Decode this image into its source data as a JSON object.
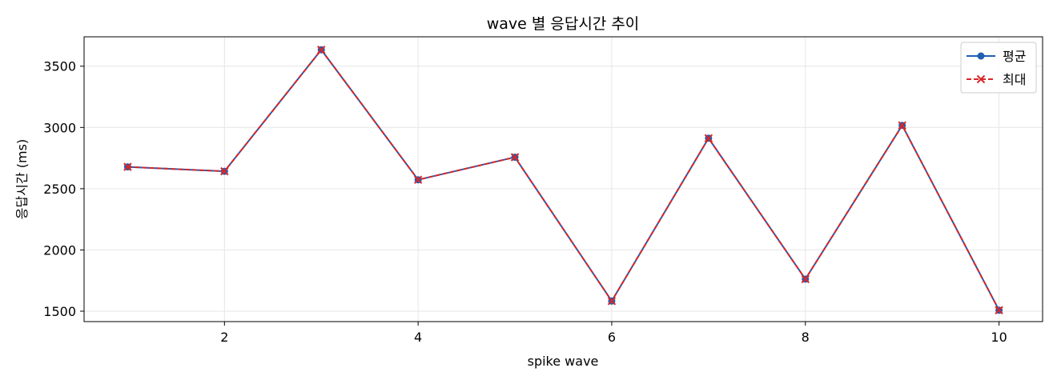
{
  "chart_data": {
    "type": "line",
    "title": "wave 별 응답시간 추이",
    "xlabel": "spike wave",
    "ylabel": "응답시간 (ms)",
    "x": [
      1,
      2,
      3,
      4,
      5,
      6,
      7,
      8,
      9,
      10
    ],
    "xlim": [
      0.55,
      10.45
    ],
    "ylim": [
      1415,
      3740
    ],
    "xticks": [
      2,
      4,
      6,
      8,
      10
    ],
    "yticks": [
      1500,
      2000,
      2500,
      3000,
      3500
    ],
    "grid": true,
    "legend_position": "top-right",
    "series": [
      {
        "name": "평균",
        "color": "#1f5fb4",
        "marker": "circle",
        "linestyle": "solid",
        "values": [
          2678,
          2642,
          3634,
          2573,
          2757,
          1583,
          2912,
          1762,
          3017,
          1508
        ]
      },
      {
        "name": "최대",
        "color": "#d62728",
        "marker": "x",
        "linestyle": "dashed",
        "values": [
          2678,
          2642,
          3634,
          2573,
          2757,
          1583,
          2912,
          1762,
          3017,
          1508
        ]
      }
    ]
  }
}
